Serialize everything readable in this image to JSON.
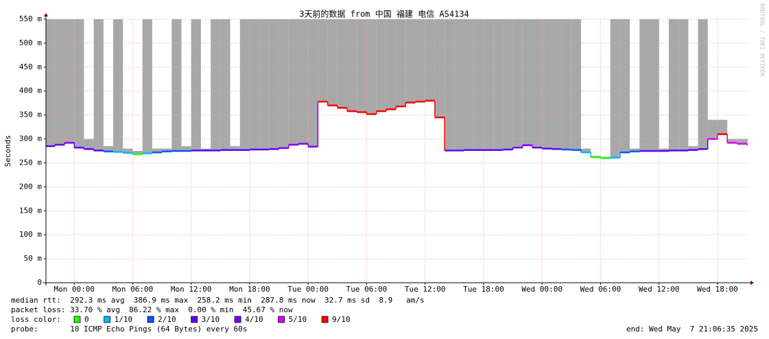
{
  "chart_data": {
    "type": "smokeping",
    "title": "3天前的数据 from 中国 福建 电信 AS4134",
    "y_label": "Seconds",
    "watermark": "RRDTOOL / TOBI OETIKER",
    "xlim": [
      -2.9,
      69.1
    ],
    "xticks": [
      {
        "value": 0,
        "label": "Mon 00:00"
      },
      {
        "value": 6,
        "label": "Mon 06:00"
      },
      {
        "value": 12,
        "label": "Mon 12:00"
      },
      {
        "value": 18,
        "label": "Mon 18:00"
      },
      {
        "value": 24,
        "label": "Tue 00:00"
      },
      {
        "value": 30,
        "label": "Tue 06:00"
      },
      {
        "value": 36,
        "label": "Tue 12:00"
      },
      {
        "value": 42,
        "label": "Tue 18:00"
      },
      {
        "value": 48,
        "label": "Wed 00:00"
      },
      {
        "value": 54,
        "label": "Wed 06:00"
      },
      {
        "value": 60,
        "label": "Wed 12:00"
      },
      {
        "value": 66,
        "label": "Wed 18:00"
      }
    ],
    "ylim": [
      0,
      550
    ],
    "yticks": [
      0,
      {
        "value": 50,
        "label": "50 m"
      },
      {
        "value": 100,
        "label": "100 m"
      },
      {
        "value": 150,
        "label": "150 m"
      },
      {
        "value": 200,
        "label": "200 m"
      },
      {
        "value": 250,
        "label": "250 m"
      },
      {
        "value": 300,
        "label": "300 m"
      },
      {
        "value": 350,
        "label": "350 m"
      },
      {
        "value": 400,
        "label": "400 m"
      },
      {
        "value": 450,
        "label": "450 m"
      },
      {
        "value": 500,
        "label": "500 m"
      },
      {
        "value": 550,
        "label": "550 m"
      }
    ],
    "grid": true,
    "x": [
      -2.9,
      -2,
      -1,
      0,
      1,
      2,
      3,
      4,
      5,
      6,
      7,
      8,
      9,
      10,
      11,
      12,
      13,
      14,
      15,
      16,
      17,
      18,
      19,
      20,
      21,
      22,
      23,
      24,
      25,
      26,
      27,
      28,
      29,
      30,
      31,
      32,
      33,
      34,
      35,
      36,
      37,
      38,
      39,
      40,
      41,
      42,
      43,
      44,
      45,
      46,
      47,
      48,
      49,
      50,
      51,
      52,
      53,
      54,
      55,
      56,
      57,
      58,
      59,
      60,
      61,
      62,
      63,
      64,
      65,
      66,
      67,
      68,
      69
    ],
    "median": [
      285,
      288,
      292,
      282,
      279,
      276,
      274,
      273,
      271,
      268,
      270,
      272,
      274,
      275,
      275,
      276,
      276,
      276,
      277,
      277,
      277,
      278,
      278,
      279,
      281,
      288,
      290,
      284,
      378,
      370,
      365,
      358,
      356,
      352,
      358,
      362,
      368,
      376,
      378,
      380,
      345,
      276,
      276,
      277,
      277,
      277,
      277,
      278,
      282,
      287,
      282,
      280,
      279,
      278,
      277,
      272,
      262,
      260,
      261,
      272,
      274,
      275,
      275,
      275,
      276,
      276,
      277,
      279,
      300,
      310,
      292,
      290,
      288
    ],
    "max": [
      550,
      550,
      550,
      550,
      300,
      550,
      285,
      550,
      280,
      275,
      550,
      280,
      280,
      550,
      285,
      550,
      280,
      550,
      550,
      285,
      550,
      550,
      550,
      550,
      550,
      550,
      550,
      550,
      550,
      550,
      550,
      550,
      550,
      550,
      550,
      550,
      550,
      550,
      550,
      550,
      550,
      550,
      550,
      550,
      550,
      550,
      550,
      550,
      550,
      550,
      550,
      550,
      550,
      550,
      550,
      280,
      265,
      263,
      550,
      550,
      280,
      550,
      550,
      280,
      550,
      550,
      285,
      550,
      340,
      340,
      300,
      300,
      300
    ],
    "loss_level": [
      3,
      3,
      4,
      3,
      3,
      3,
      2,
      1,
      1,
      0,
      1,
      2,
      2,
      2,
      2,
      3,
      3,
      3,
      3,
      3,
      3,
      3,
      3,
      3,
      4,
      4,
      4,
      4,
      6,
      6,
      6,
      6,
      6,
      6,
      6,
      6,
      6,
      6,
      6,
      6,
      6,
      3,
      3,
      3,
      3,
      3,
      3,
      3,
      4,
      4,
      3,
      3,
      3,
      2,
      2,
      1,
      0,
      0,
      1,
      2,
      2,
      3,
      3,
      3,
      3,
      3,
      3,
      3,
      5,
      6,
      5,
      5,
      5
    ],
    "smoke_color": "#a8a8a8",
    "legend_title": "loss color:",
    "loss_colors": [
      {
        "label": "0",
        "color": "#26ff00"
      },
      {
        "label": "1/10",
        "color": "#00b8ff"
      },
      {
        "label": "2/10",
        "color": "#0059ff"
      },
      {
        "label": "3/10",
        "color": "#5e00ff"
      },
      {
        "label": "4/10",
        "color": "#7e00ff"
      },
      {
        "label": "5/10",
        "color": "#dd00ff"
      },
      {
        "label": "9/10",
        "color": "#ff0000"
      }
    ],
    "stats": [
      "median rtt:  292.3 ms avg  386.9 ms max  258.2 ms min  287.8 ms now  32.7 ms sd  8.9   am/s",
      "packet loss: 33.70 % avg  86.22 % max  0.00 % min  45.67 % now"
    ],
    "probe": "probe:       10 ICMP Echo Pings (64 Bytes) every 60s",
    "end": "end: Wed May  7 21:06:35 2025"
  }
}
